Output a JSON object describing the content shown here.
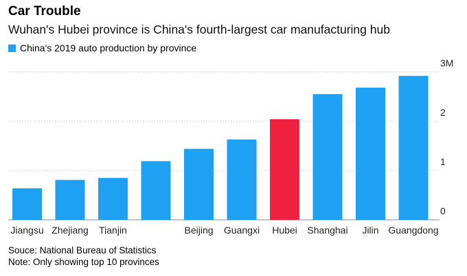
{
  "header": {
    "title": "Car Trouble",
    "subtitle": "Wuhan's Hubei province is China's fourth-largest car manufacturing hub"
  },
  "legend": {
    "label": "China's 2019 auto production by province",
    "color": "#1ea1f2"
  },
  "colors": {
    "bar": "#1ea1f2",
    "highlight": "#f0203f",
    "grid": "#cfcfcf"
  },
  "footer": {
    "source": "Souce: National Bureau of Statistics",
    "note": "Note: Only showing top 10 provinces"
  },
  "chart_data": {
    "type": "bar",
    "categories": [
      "Jiangsu",
      "Zhejiang",
      "Tianjin",
      "",
      "Beijing",
      "Guangxi",
      "Hubei",
      "Shanghai",
      "Jilin",
      "Guangdong"
    ],
    "values": [
      0.64,
      0.81,
      0.85,
      1.19,
      1.44,
      1.63,
      2.04,
      2.55,
      2.68,
      2.92
    ],
    "highlight": "Hubei",
    "ylim": [
      0,
      3
    ],
    "yticks": [
      0,
      1,
      2,
      3
    ],
    "ytick_labels": [
      "0",
      "1",
      "2",
      "3M"
    ],
    "grid": true,
    "legend_position": "top-left"
  }
}
